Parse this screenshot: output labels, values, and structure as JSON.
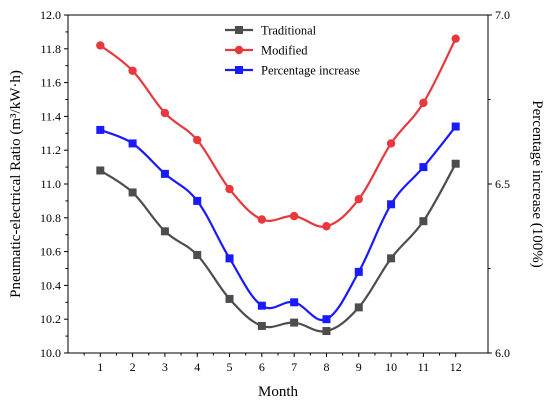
{
  "chart_data": {
    "type": "line",
    "title": "",
    "xlabel": "Month",
    "ylabel": "Pneumatic-electrical Ratio (m³/kW·h)",
    "y2label": "Percentage increase (100%)",
    "x": [
      1,
      2,
      3,
      4,
      5,
      6,
      7,
      8,
      9,
      10,
      11,
      12
    ],
    "xlim": [
      0,
      13
    ],
    "ylim": [
      10.0,
      12.0
    ],
    "y2lim": [
      6.0,
      7.0
    ],
    "y_ticks": [
      "10.0",
      "10.2",
      "10.4",
      "10.6",
      "10.8",
      "11.0",
      "11.2",
      "11.4",
      "11.6",
      "11.8",
      "12.0"
    ],
    "y2_ticks": [
      "6.0",
      "6.5",
      "7.0"
    ],
    "x_ticks": [
      "1",
      "2",
      "3",
      "4",
      "5",
      "6",
      "7",
      "8",
      "9",
      "10",
      "11",
      "12"
    ],
    "legend_position": "top-center",
    "grid": false,
    "series": [
      {
        "name": "Traditional",
        "axis": "left",
        "marker": "square",
        "color": "#4d4d4d",
        "values": [
          11.08,
          10.95,
          10.72,
          10.58,
          10.32,
          10.16,
          10.18,
          10.13,
          10.27,
          10.56,
          10.78,
          11.12
        ]
      },
      {
        "name": "Modified",
        "axis": "left",
        "marker": "circle",
        "color": "#e8383d",
        "values": [
          11.82,
          11.67,
          11.42,
          11.26,
          10.97,
          10.79,
          10.81,
          10.75,
          10.91,
          11.24,
          11.48,
          11.86
        ]
      },
      {
        "name": "Percentage increase",
        "axis": "right",
        "marker": "square",
        "color": "#1a1aff",
        "values": [
          6.66,
          6.62,
          6.53,
          6.45,
          6.28,
          6.14,
          6.15,
          6.1,
          6.24,
          6.44,
          6.55,
          6.67
        ]
      }
    ]
  }
}
